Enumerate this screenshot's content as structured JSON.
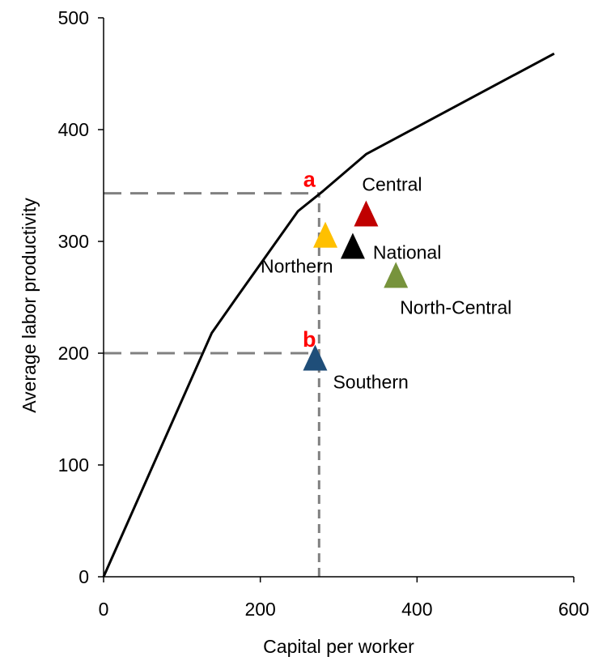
{
  "chart_data": {
    "type": "line",
    "title": "",
    "xlabel": "Capital per worker",
    "ylabel": "Average labor productivity",
    "xlim": [
      0,
      600
    ],
    "ylim": [
      0,
      500
    ],
    "x_ticks": [
      0,
      200,
      400,
      600
    ],
    "y_ticks": [
      0,
      100,
      200,
      300,
      400,
      500
    ],
    "grid": false,
    "series": [
      {
        "x": [
          0,
          138,
          170,
          248,
          280,
          335,
          575
        ],
        "y": [
          0,
          218,
          250,
          327,
          345,
          378,
          468
        ],
        "color": "#000000"
      }
    ],
    "points": [
      {
        "label": "Central",
        "x": 335,
        "y": 325,
        "color": "#C00000"
      },
      {
        "label": "Northern",
        "x": 283,
        "y": 306,
        "color": "#FFC000"
      },
      {
        "label": "National",
        "x": 318,
        "y": 296,
        "color": "#000000"
      },
      {
        "label": "North-Central",
        "x": 373,
        "y": 270,
        "color": "#77933C"
      },
      {
        "label": "Southern",
        "x": 270,
        "y": 196,
        "color": "#1F4E79"
      }
    ],
    "annotations": [
      {
        "text": "a",
        "x": 275,
        "y": 343,
        "color": "#FF0000"
      },
      {
        "text": "b",
        "x": 275,
        "y": 200,
        "color": "#FF0000"
      }
    ],
    "reference_lines": [
      {
        "type": "horizontal",
        "y": 343,
        "x_from": 0,
        "x_to": 275,
        "style": "dashed",
        "color": "#808080"
      },
      {
        "type": "horizontal",
        "y": 200,
        "x_from": 0,
        "x_to": 275,
        "style": "dashed",
        "color": "#808080"
      },
      {
        "type": "vertical",
        "x": 275,
        "y_from": 0,
        "y_to": 343,
        "style": "dashed",
        "color": "#808080"
      }
    ]
  }
}
